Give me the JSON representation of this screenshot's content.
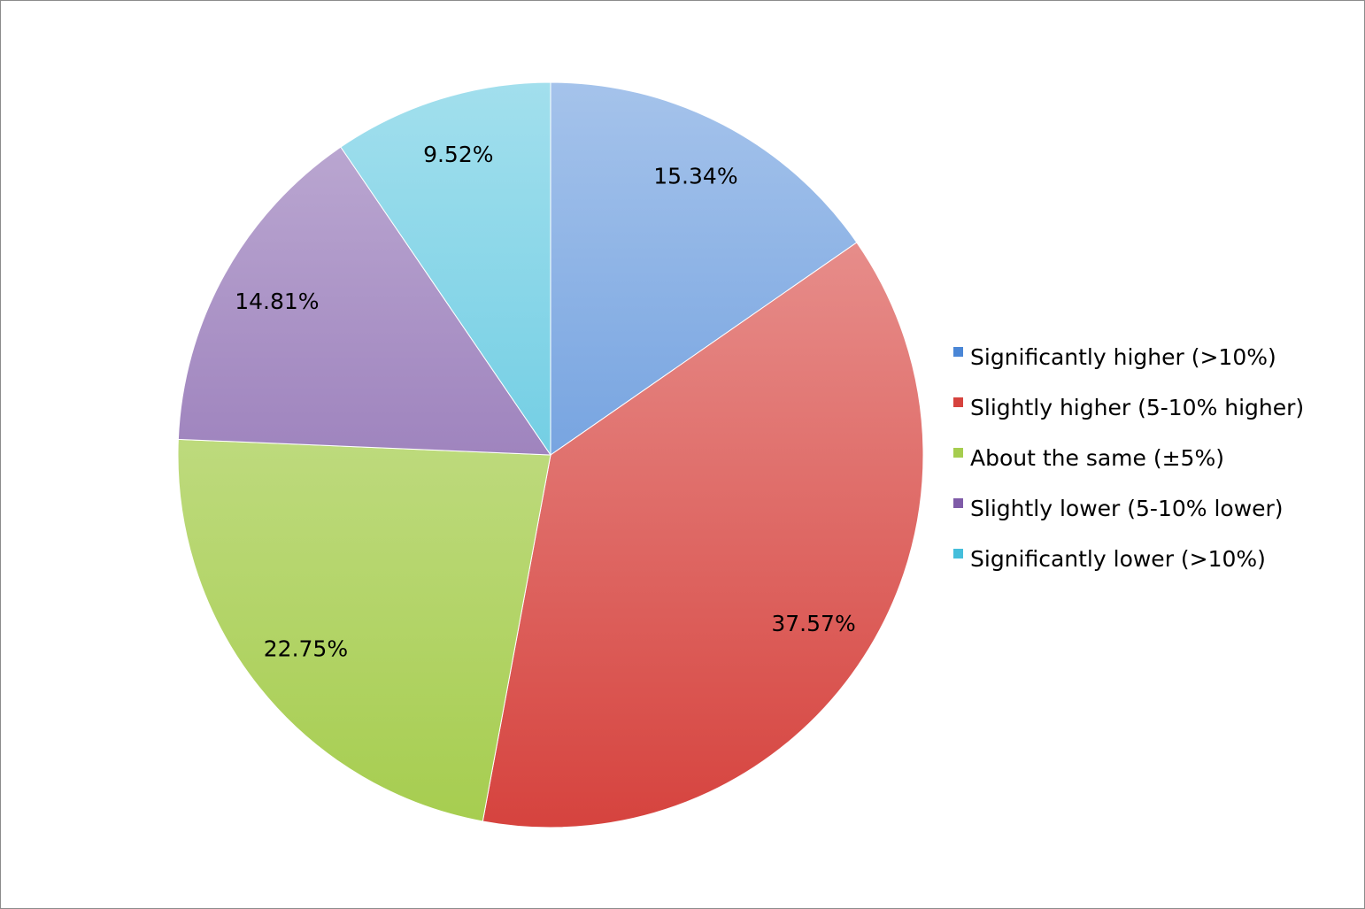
{
  "chart_data": {
    "type": "pie",
    "categories": [
      "Significantly higher (>10%)",
      "Slightly higher (5-10% higher)",
      "About the same (±5%)",
      "Slightly lower (5-10% lower)",
      "Significantly lower (>10%)"
    ],
    "values": [
      15.34,
      37.57,
      22.75,
      14.81,
      9.52
    ],
    "value_labels": [
      "15.34%",
      "37.57%",
      "22.75%",
      "14.81%",
      "9.52%"
    ],
    "colors": [
      "#4a86d6",
      "#d6433e",
      "#a6cd4f",
      "#7f5ba8",
      "#45bedb"
    ],
    "legend": "right"
  }
}
